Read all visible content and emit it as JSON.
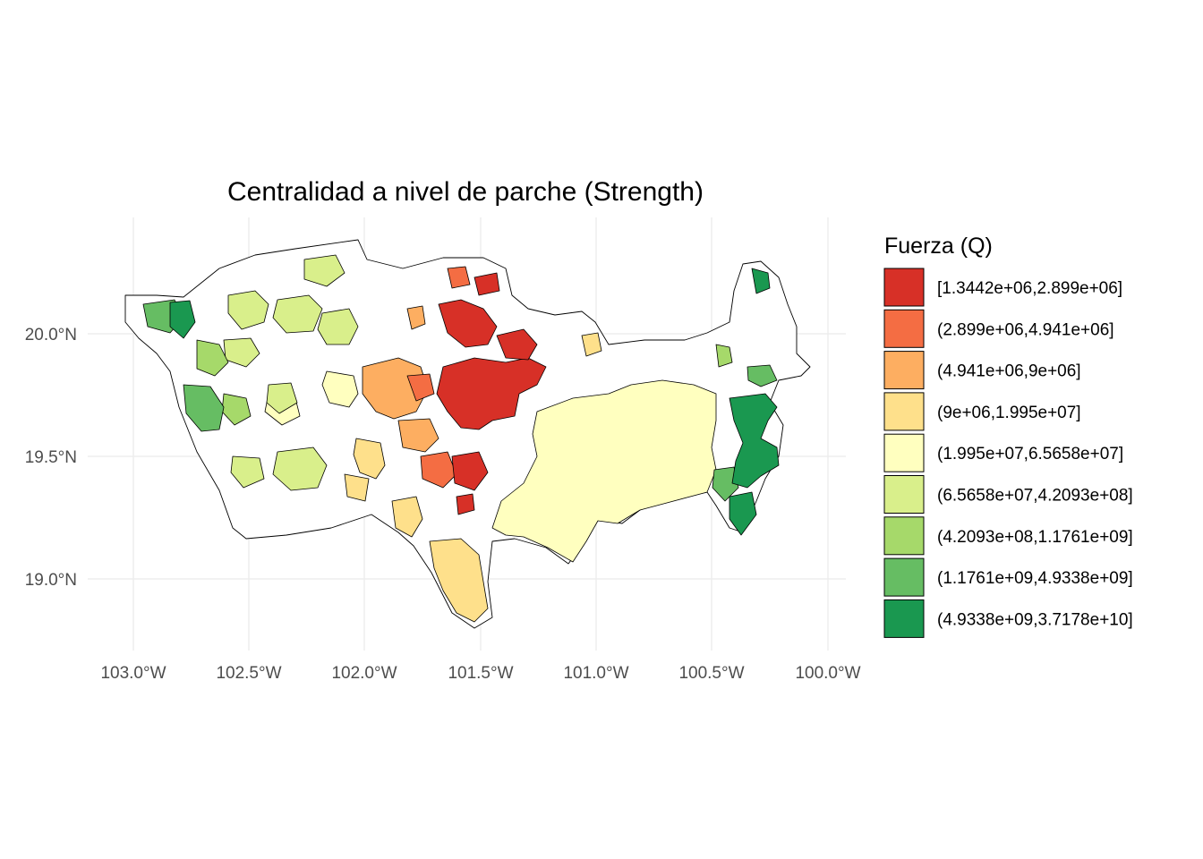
{
  "title": "Centralidad a nivel de parche (Strength)",
  "axes": {
    "x_ticks": [
      "103.0°W",
      "102.5°W",
      "102.0°W",
      "101.5°W",
      "101.0°W",
      "100.5°W",
      "100.0°W"
    ],
    "y_ticks": [
      "20.0°N",
      "19.5°N",
      "19.0°N"
    ]
  },
  "legend": {
    "title": "Fuerza (Q)",
    "classes": [
      {
        "label": "[1.3442e+06,2.899e+06]",
        "color": "#d73027"
      },
      {
        "label": "(2.899e+06,4.941e+06]",
        "color": "#f46d43"
      },
      {
        "label": "(4.941e+06,9e+06]",
        "color": "#fdae61"
      },
      {
        "label": "(9e+06,1.995e+07]",
        "color": "#fee08b"
      },
      {
        "label": "(1.995e+07,6.5658e+07]",
        "color": "#ffffbf"
      },
      {
        "label": "(6.5658e+07,4.2093e+08]",
        "color": "#d9ef8b"
      },
      {
        "label": "(4.2093e+08,1.1761e+09]",
        "color": "#a6d96a"
      },
      {
        "label": "(1.1761e+09,4.9338e+09]",
        "color": "#66bd63"
      },
      {
        "label": "(4.9338e+09,3.7178e+10]",
        "color": "#1a9850"
      }
    ]
  }
}
